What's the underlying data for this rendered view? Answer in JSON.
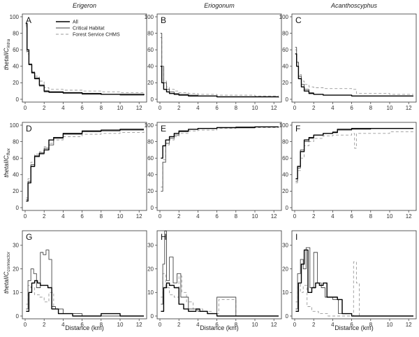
{
  "figure": {
    "column_titles": [
      "Erigeron",
      "Eriogonum",
      "Acanthoscyphus"
    ],
    "xlabel": "Distance (km)",
    "row_ylabels": [
      {
        "main": "thetaIIC",
        "sub": "intra"
      },
      {
        "main": "thetaIIC",
        "sub": "flux"
      },
      {
        "main": "thetaIIC",
        "sub": "connector"
      }
    ],
    "legend": {
      "placement": "top-left of panel A",
      "entries": [
        "All",
        "Critical Habitat",
        "Forest Service CHMS"
      ]
    }
  },
  "chart_data": [
    {
      "type": "line",
      "panel": "A",
      "column": "Erigeron",
      "row": "intra",
      "xlim": [
        0,
        12.5
      ],
      "ylim": [
        0,
        100
      ],
      "x_ticks": [
        0,
        2,
        4,
        6,
        8,
        10,
        12
      ],
      "y_ticks": [
        0,
        20,
        40,
        60,
        80,
        100
      ],
      "series": [
        {
          "name": "All",
          "x": [
            0.05,
            0.2,
            0.4,
            0.7,
            1.0,
            1.5,
            2.0,
            2.5,
            4,
            6,
            8,
            10,
            12.5
          ],
          "y": [
            92,
            60,
            42,
            32,
            25,
            17,
            10,
            9,
            8,
            7,
            6,
            6,
            5
          ]
        },
        {
          "name": "Critical Habitat",
          "x": [
            0.05,
            0.2,
            0.4,
            0.7,
            1.0,
            1.5,
            2.0,
            2.5,
            4,
            6,
            8,
            10,
            12.5
          ],
          "y": [
            90,
            58,
            43,
            33,
            26,
            16,
            9,
            8,
            7,
            6,
            6,
            5,
            5
          ]
        },
        {
          "name": "Forest Service CHMS",
          "x": [
            0.05,
            0.2,
            0.4,
            0.7,
            1.0,
            1.5,
            2.0,
            2.5,
            4,
            6,
            8,
            10,
            12.5
          ],
          "y": [
            88,
            55,
            42,
            34,
            28,
            22,
            14,
            12,
            11,
            10,
            9,
            8,
            7
          ]
        }
      ]
    },
    {
      "type": "line",
      "panel": "B",
      "column": "Eriogonum",
      "row": "intra",
      "xlim": [
        0,
        12.5
      ],
      "ylim": [
        0,
        100
      ],
      "x_ticks": [
        0,
        2,
        4,
        6,
        8,
        10,
        12
      ],
      "y_ticks": [
        0,
        20,
        40,
        60,
        80,
        100
      ],
      "series": [
        {
          "name": "All",
          "x": [
            0.05,
            0.2,
            0.4,
            0.7,
            1.0,
            1.5,
            2.0,
            3,
            4,
            6,
            8,
            10,
            12.5
          ],
          "y": [
            40,
            20,
            12,
            9,
            7,
            6,
            5,
            4,
            4,
            3,
            3,
            3,
            3
          ]
        },
        {
          "name": "Critical Habitat",
          "x": [
            0.05,
            0.2,
            0.4,
            0.7,
            1.0,
            1.5,
            2.0,
            3,
            4,
            6,
            8,
            10,
            12.5
          ],
          "y": [
            80,
            40,
            20,
            12,
            9,
            7,
            6,
            5,
            4,
            3,
            3,
            3,
            2
          ]
        },
        {
          "name": "Forest Service CHMS",
          "x": [
            0.05,
            0.2,
            0.4,
            0.7,
            1.0,
            1.5,
            2.0,
            3,
            4,
            6,
            8,
            10,
            12.5
          ],
          "y": [
            75,
            38,
            22,
            15,
            12,
            10,
            8,
            7,
            6,
            5,
            5,
            4,
            4
          ]
        }
      ]
    },
    {
      "type": "line",
      "panel": "C",
      "column": "Acanthoscyphus",
      "row": "intra",
      "xlim": [
        0,
        12.5
      ],
      "ylim": [
        0,
        100
      ],
      "x_ticks": [
        0,
        2,
        4,
        6,
        8,
        10,
        12
      ],
      "y_ticks": [
        0,
        20,
        40,
        60,
        80,
        100
      ],
      "series": [
        {
          "name": "All",
          "x": [
            0.05,
            0.2,
            0.4,
            0.7,
            1.0,
            1.5,
            2.0,
            3,
            4,
            6,
            8,
            10,
            12.5
          ],
          "y": [
            55,
            40,
            25,
            15,
            10,
            7,
            6,
            5,
            5,
            4,
            4,
            4,
            4
          ]
        },
        {
          "name": "Critical Habitat",
          "x": [
            0.05,
            0.2,
            0.4,
            0.7,
            1.0,
            1.5,
            2.0,
            3,
            4,
            6,
            8,
            10,
            12.5
          ],
          "y": [
            63,
            45,
            28,
            18,
            12,
            8,
            6,
            5,
            5,
            4,
            4,
            4,
            4
          ]
        },
        {
          "name": "Forest Service CHMS",
          "x": [
            0.05,
            0.2,
            0.4,
            0.7,
            1.0,
            1.5,
            2.0,
            3,
            4,
            6,
            6.5,
            10,
            12.5
          ],
          "y": [
            60,
            45,
            30,
            22,
            18,
            15,
            14,
            13,
            13,
            12,
            7,
            6,
            6
          ]
        }
      ]
    },
    {
      "type": "line",
      "panel": "D",
      "column": "Erigeron",
      "row": "flux",
      "xlim": [
        0,
        12.5
      ],
      "ylim": [
        0,
        100
      ],
      "x_ticks": [
        0,
        2,
        4,
        6,
        8,
        10,
        12
      ],
      "y_ticks": [
        0,
        20,
        40,
        60,
        80,
        100
      ],
      "series": [
        {
          "name": "All",
          "x": [
            0.1,
            0.3,
            0.6,
            1.0,
            1.5,
            2.0,
            2.5,
            3,
            4,
            6,
            8,
            10,
            12.5
          ],
          "y": [
            8,
            30,
            50,
            62,
            66,
            70,
            82,
            85,
            90,
            93,
            94,
            95,
            95
          ]
        },
        {
          "name": "Critical Habitat",
          "x": [
            0.1,
            0.3,
            0.6,
            1.0,
            1.5,
            2.0,
            2.5,
            3,
            4,
            6,
            8,
            10,
            12.5
          ],
          "y": [
            10,
            32,
            52,
            63,
            65,
            72,
            76,
            84,
            89,
            92,
            93,
            94,
            94
          ]
        },
        {
          "name": "Forest Service CHMS",
          "x": [
            0.1,
            0.3,
            0.6,
            1.0,
            1.5,
            2.0,
            2.5,
            3,
            4,
            6,
            8,
            10,
            12.5
          ],
          "y": [
            12,
            35,
            55,
            65,
            68,
            74,
            78,
            82,
            86,
            89,
            90,
            91,
            92
          ]
        }
      ]
    },
    {
      "type": "line",
      "panel": "E",
      "column": "Eriogonum",
      "row": "flux",
      "xlim": [
        0,
        12.5
      ],
      "ylim": [
        0,
        100
      ],
      "x_ticks": [
        0,
        2,
        4,
        6,
        8,
        10,
        12
      ],
      "y_ticks": [
        0,
        20,
        40,
        60,
        80,
        100
      ],
      "series": [
        {
          "name": "All",
          "x": [
            0.1,
            0.3,
            0.6,
            1.0,
            1.5,
            2.0,
            3,
            4,
            6,
            8,
            10,
            12.5
          ],
          "y": [
            60,
            75,
            82,
            86,
            90,
            93,
            95,
            96,
            97,
            97,
            98,
            98
          ]
        },
        {
          "name": "Critical Habitat",
          "x": [
            0.1,
            0.3,
            0.6,
            1.0,
            1.5,
            2.0,
            3,
            4,
            6,
            8,
            10,
            12.5
          ],
          "y": [
            20,
            55,
            78,
            84,
            88,
            92,
            95,
            96,
            97,
            98,
            98,
            98
          ]
        },
        {
          "name": "Forest Service CHMS",
          "x": [
            0.1,
            0.3,
            0.6,
            1.0,
            1.5,
            2.0,
            3,
            4,
            6,
            8,
            10,
            12.5
          ],
          "y": [
            25,
            58,
            76,
            82,
            86,
            90,
            93,
            94,
            96,
            97,
            97,
            98
          ]
        }
      ]
    },
    {
      "type": "line",
      "panel": "F",
      "column": "Acanthoscyphus",
      "row": "flux",
      "xlim": [
        0,
        12.5
      ],
      "ylim": [
        0,
        100
      ],
      "x_ticks": [
        0,
        2,
        4,
        6,
        8,
        10,
        12
      ],
      "y_ticks": [
        0,
        20,
        40,
        60,
        80,
        100
      ],
      "series": [
        {
          "name": "All",
          "x": [
            0.1,
            0.3,
            0.6,
            1.0,
            1.5,
            2.0,
            3,
            4,
            4.5,
            6,
            8,
            10,
            12.5
          ],
          "y": [
            35,
            50,
            68,
            82,
            85,
            88,
            90,
            91,
            95,
            96,
            96,
            96,
            96
          ]
        },
        {
          "name": "Critical Habitat",
          "x": [
            0.1,
            0.3,
            0.6,
            1.0,
            1.5,
            2.0,
            3,
            4,
            4.5,
            6,
            8,
            10,
            12.5
          ],
          "y": [
            32,
            48,
            70,
            80,
            84,
            88,
            90,
            92,
            94,
            95,
            96,
            96,
            96
          ]
        },
        {
          "name": "Forest Service CHMS",
          "x": [
            0.1,
            0.3,
            0.6,
            1.0,
            1.5,
            2.0,
            3,
            4,
            6,
            6.3,
            6.5,
            10,
            12.5
          ],
          "y": [
            30,
            45,
            60,
            75,
            80,
            84,
            87,
            88,
            90,
            72,
            90,
            92,
            93
          ]
        }
      ]
    },
    {
      "type": "line",
      "panel": "G",
      "column": "Erigeron",
      "row": "connector",
      "xlim": [
        0,
        12.5
      ],
      "ylim": [
        0,
        35
      ],
      "x_ticks": [
        0,
        2,
        4,
        6,
        8,
        10,
        12
      ],
      "y_ticks": [
        0,
        10,
        20,
        30
      ],
      "series": [
        {
          "name": "All",
          "x": [
            0.1,
            0.4,
            0.7,
            1.0,
            1.3,
            1.6,
            2.0,
            2.4,
            2.8,
            3.5,
            5,
            7.5,
            8,
            9.5,
            10,
            12.5
          ],
          "y": [
            2,
            10,
            14,
            15,
            14,
            13,
            13,
            12,
            3,
            1,
            0,
            0,
            1,
            1,
            0,
            0
          ]
        },
        {
          "name": "Critical Habitat",
          "x": [
            0.1,
            0.3,
            0.6,
            0.9,
            1.2,
            1.6,
            1.9,
            2.2,
            2.5,
            2.8,
            3.2,
            4,
            6,
            8,
            10,
            12.5
          ],
          "y": [
            3,
            15,
            20,
            18,
            12,
            27,
            26,
            28,
            24,
            4,
            3,
            1,
            0,
            0,
            0,
            0
          ]
        },
        {
          "name": "Forest Service CHMS",
          "x": [
            0.1,
            0.3,
            0.6,
            1.0,
            1.5,
            2.0,
            2.5,
            3,
            4,
            6,
            8,
            10,
            12.5
          ],
          "y": [
            5,
            13,
            12,
            9,
            8,
            6,
            10,
            3,
            1,
            0,
            0,
            0,
            0
          ]
        }
      ]
    },
    {
      "type": "line",
      "panel": "H",
      "column": "Eriogonum",
      "row": "connector",
      "xlim": [
        0,
        12.5
      ],
      "ylim": [
        0,
        35
      ],
      "x_ticks": [
        0,
        2,
        4,
        6,
        8,
        10,
        12
      ],
      "y_ticks": [
        0,
        10,
        20,
        30
      ],
      "series": [
        {
          "name": "All",
          "x": [
            0.1,
            0.4,
            0.7,
            1.0,
            1.5,
            2.0,
            2.5,
            3,
            3.8,
            4.2,
            5,
            6,
            8,
            12.5
          ],
          "y": [
            2,
            12,
            14,
            13,
            12,
            5,
            3,
            2,
            3,
            2,
            1,
            0,
            0,
            0
          ]
        },
        {
          "name": "Critical Habitat",
          "x": [
            0.1,
            0.3,
            0.5,
            0.7,
            1.0,
            1.4,
            1.8,
            2.2,
            3,
            4,
            5,
            6,
            8,
            12.5
          ],
          "y": [
            5,
            22,
            36,
            15,
            25,
            14,
            18,
            8,
            3,
            2,
            1,
            8,
            0,
            0
          ]
        },
        {
          "name": "Forest Service CHMS",
          "x": [
            0.1,
            0.3,
            0.6,
            1.0,
            1.5,
            2.0,
            2.3,
            2.8,
            3.5,
            4.5,
            5.5,
            6.2,
            8,
            12.5
          ],
          "y": [
            8,
            18,
            12,
            9,
            8,
            17,
            10,
            6,
            3,
            2,
            1,
            7,
            0,
            0
          ]
        }
      ]
    },
    {
      "type": "line",
      "panel": "I",
      "column": "Acanthoscyphus",
      "row": "connector",
      "xlim": [
        0,
        12.5
      ],
      "ylim": [
        0,
        35
      ],
      "x_ticks": [
        0,
        2,
        4,
        6,
        8,
        10,
        12
      ],
      "y_ticks": [
        0,
        10,
        20,
        30
      ],
      "series": [
        {
          "name": "All",
          "x": [
            0.1,
            0.4,
            0.7,
            1.0,
            1.4,
            1.8,
            2.2,
            2.6,
            3,
            3.4,
            4.5,
            5,
            6,
            8,
            12.5
          ],
          "y": [
            2,
            14,
            22,
            28,
            10,
            12,
            14,
            13,
            14,
            8,
            7,
            1,
            0,
            0,
            0
          ]
        },
        {
          "name": "Critical Habitat",
          "x": [
            0.1,
            0.3,
            0.6,
            0.9,
            1.2,
            1.6,
            2.0,
            2.4,
            2.8,
            3.2,
            4,
            4.6,
            6,
            8,
            12.5
          ],
          "y": [
            3,
            18,
            24,
            20,
            29,
            12,
            27,
            14,
            12,
            8,
            7,
            1,
            0,
            0,
            0
          ]
        },
        {
          "name": "Forest Service CHMS",
          "x": [
            0.1,
            0.3,
            0.6,
            0.9,
            1.3,
            1.8,
            2.5,
            3.5,
            5,
            6.0,
            6.2,
            6.5,
            6.8,
            8,
            12.5
          ],
          "y": [
            6,
            14,
            10,
            13,
            4,
            2,
            1,
            0,
            0,
            0,
            23,
            14,
            0,
            0,
            0
          ]
        }
      ]
    }
  ],
  "series_styles": {
    "All": {
      "color": "#000000",
      "dash": ""
    },
    "Critical Habitat": {
      "color": "#444444",
      "dash": ""
    },
    "Forest Service CHMS": {
      "color": "#9a9a9a",
      "dash": "4,3"
    }
  }
}
